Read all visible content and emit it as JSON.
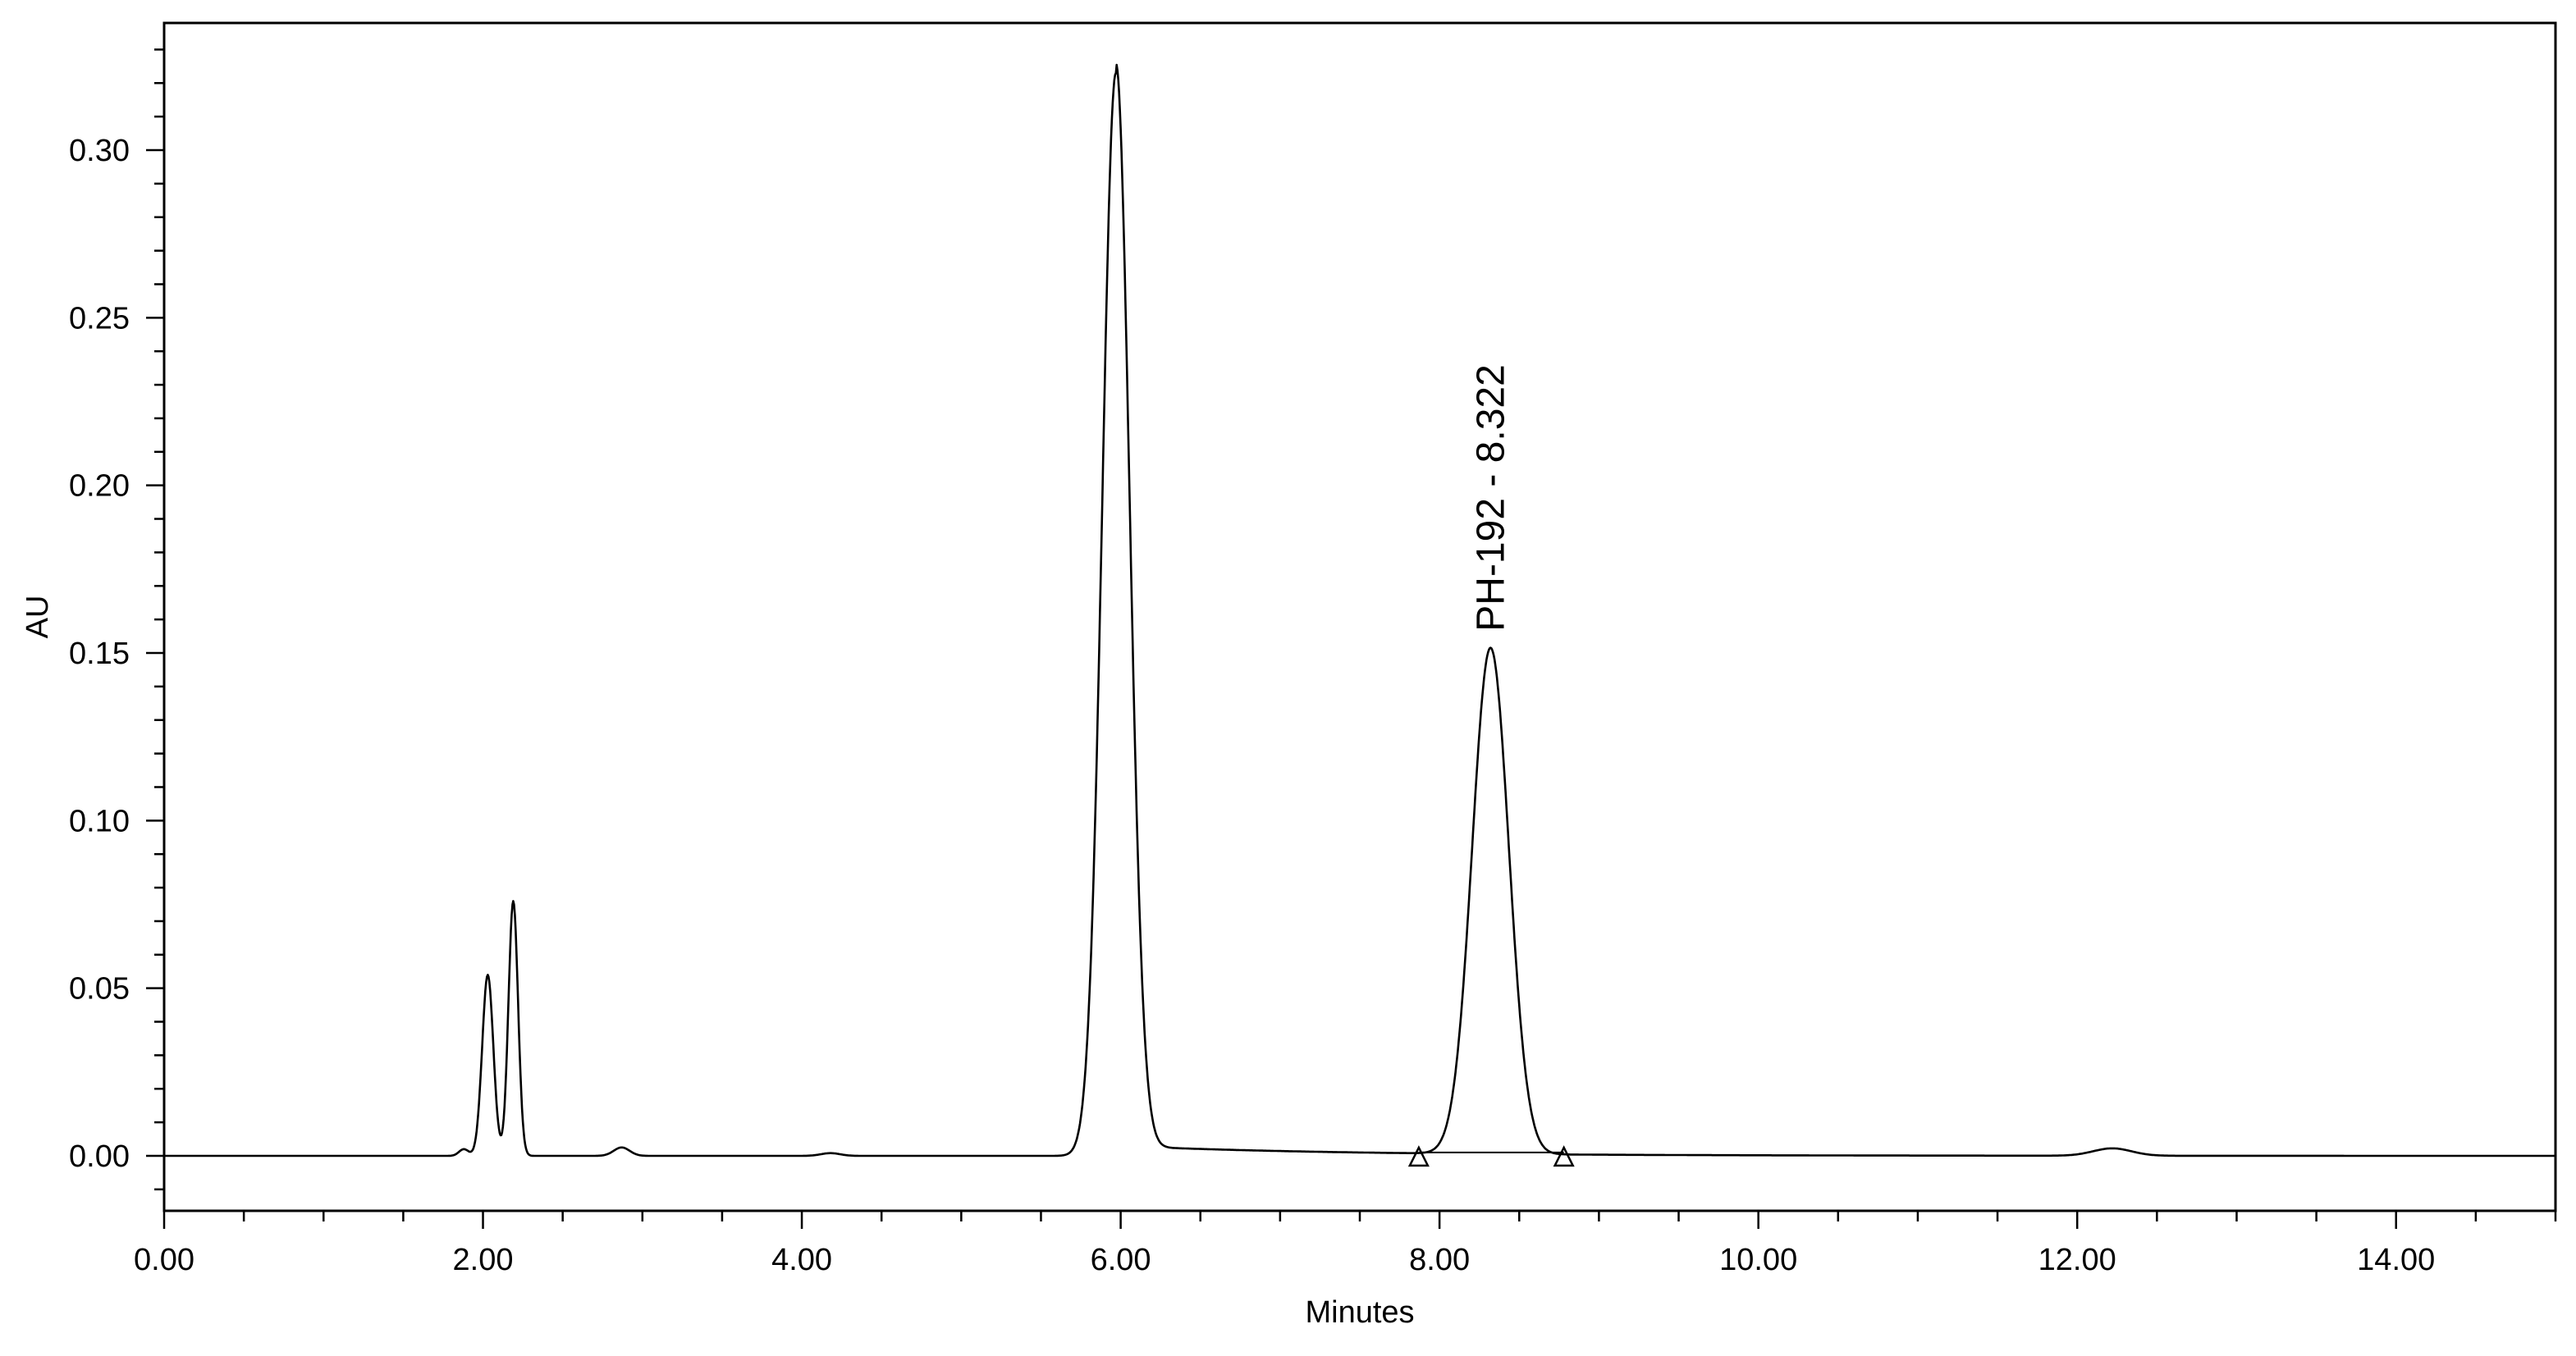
{
  "chart_data": {
    "type": "line",
    "title": "",
    "xlabel": "Minutes",
    "ylabel": "AU",
    "xlim": [
      0,
      15
    ],
    "ylim": [
      -0.015,
      0.33
    ],
    "x_ticks": [
      0,
      2,
      4,
      6,
      8,
      10,
      12,
      14
    ],
    "x_tick_labels": [
      "0.00",
      "2.00",
      "4.00",
      "6.00",
      "8.00",
      "10.00",
      "12.00",
      "14.00"
    ],
    "y_ticks": [
      0,
      0.05,
      0.1,
      0.15,
      0.2,
      0.25,
      0.3
    ],
    "y_tick_labels": [
      "0.00",
      "0.05",
      "0.10",
      "0.15",
      "0.20",
      "0.25",
      "0.30"
    ],
    "grid": false,
    "line_color": "#000000",
    "series": [
      {
        "peaks": [
          {
            "rt": 1.88,
            "height": 0.002,
            "width": 0.03
          },
          {
            "rt": 2.03,
            "height": 0.054,
            "width": 0.035
          },
          {
            "rt": 2.19,
            "height": 0.076,
            "width": 0.03
          },
          {
            "rt": 2.87,
            "height": 0.0025,
            "width": 0.05
          },
          {
            "rt": 4.18,
            "height": 0.0008,
            "width": 0.06
          },
          {
            "rt": 5.97,
            "height": 0.323,
            "width": 0.085
          },
          {
            "rt": 8.32,
            "height": 0.151,
            "width": 0.115
          },
          {
            "rt": 12.22,
            "height": 0.0022,
            "width": 0.12
          }
        ]
      }
    ],
    "annotations": [
      {
        "text": "PH-192 - 8.322",
        "x": 8.322,
        "y": 0.153
      }
    ],
    "integration_baseline": {
      "start": 7.87,
      "end": 8.78,
      "y": 0.001
    }
  }
}
